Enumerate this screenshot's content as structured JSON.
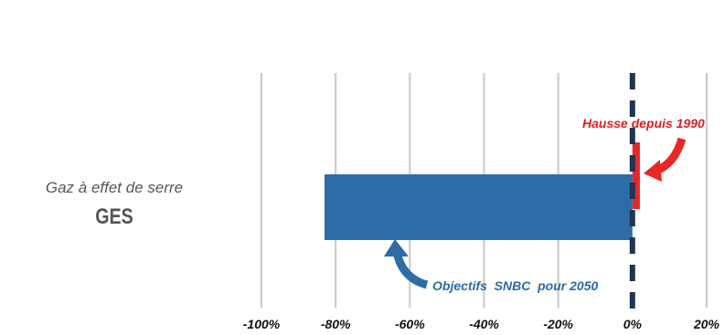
{
  "chart_data": {
    "type": "bar",
    "orientation": "horizontal",
    "category": {
      "line1": "Gaz à effet de serre",
      "line2": "GES"
    },
    "series": [
      {
        "key": "objectif",
        "value": -83,
        "color": "#2e6ca8"
      },
      {
        "key": "hausse",
        "value": 2,
        "color": "#e82828"
      }
    ],
    "xlim": [
      -100,
      20
    ],
    "ticks": [
      {
        "value": -100,
        "label": "-100%"
      },
      {
        "value": -80,
        "label": "-80%"
      },
      {
        "value": -60,
        "label": "-60%"
      },
      {
        "value": -40,
        "label": "-40%"
      },
      {
        "value": -20,
        "label": "-20%"
      },
      {
        "value": 0,
        "label": "0%"
      },
      {
        "value": 20,
        "label": "20%"
      }
    ],
    "grid": true,
    "annotations": {
      "hausse": "Hausse depuis 1990",
      "objectif": "Objectifs  SNBC  pour 2050"
    },
    "colors": {
      "grid": "#c8c8c8",
      "zero_line": "#1f3550",
      "annotation_red": "#e02020",
      "annotation_blue": "#2a6aa8"
    }
  }
}
